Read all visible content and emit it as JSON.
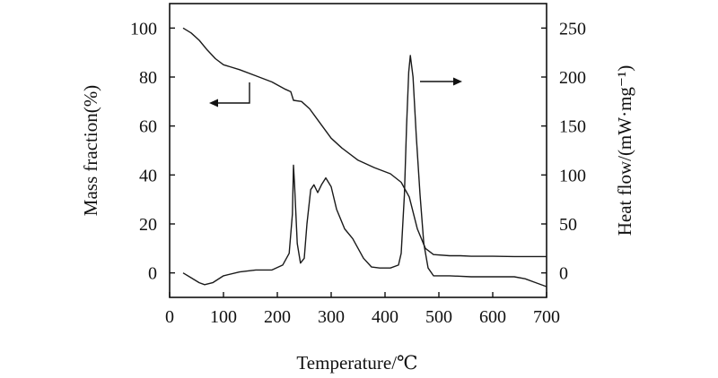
{
  "chart_data": {
    "type": "line",
    "xlabel": "Temperature/℃",
    "ylabel_left": "Mass fraction(%)",
    "ylabel_right": "Heat flow/(mW·mg⁻¹)",
    "xlim": [
      0,
      700
    ],
    "ylim_left": [
      -10,
      110
    ],
    "ylim_right": [
      -25,
      275
    ],
    "x_ticks": [
      "0",
      "100",
      "200",
      "300",
      "400",
      "500",
      "600",
      "700"
    ],
    "y_left_ticks": [
      "0",
      "20",
      "40",
      "60",
      "80",
      "100"
    ],
    "y_right_ticks": [
      "0",
      "50",
      "100",
      "150",
      "200",
      "250"
    ],
    "grid": false,
    "series": [
      {
        "axis": "left",
        "points": [
          [
            25,
            100
          ],
          [
            40,
            98
          ],
          [
            55,
            95
          ],
          [
            70,
            91
          ],
          [
            85,
            87.5
          ],
          [
            100,
            85
          ],
          [
            130,
            83
          ],
          [
            160,
            80.5
          ],
          [
            190,
            78
          ],
          [
            215,
            75
          ],
          [
            225,
            74
          ],
          [
            230,
            70.5
          ],
          [
            245,
            70
          ],
          [
            260,
            67
          ],
          [
            280,
            61
          ],
          [
            300,
            55
          ],
          [
            320,
            51
          ],
          [
            350,
            46
          ],
          [
            380,
            43
          ],
          [
            410,
            40.5
          ],
          [
            430,
            37
          ],
          [
            445,
            31
          ],
          [
            460,
            18
          ],
          [
            475,
            10
          ],
          [
            490,
            7.5
          ],
          [
            520,
            7
          ],
          [
            540,
            7
          ],
          [
            560,
            6.8
          ],
          [
            600,
            6.8
          ],
          [
            640,
            6.7
          ],
          [
            700,
            6.7
          ]
        ]
      },
      {
        "axis": "right",
        "points": [
          [
            25,
            0
          ],
          [
            40,
            -5
          ],
          [
            55,
            -10
          ],
          [
            65,
            -12
          ],
          [
            80,
            -10
          ],
          [
            100,
            -3
          ],
          [
            130,
            1
          ],
          [
            160,
            3
          ],
          [
            190,
            3
          ],
          [
            210,
            8
          ],
          [
            222,
            20
          ],
          [
            228,
            60
          ],
          [
            230,
            110
          ],
          [
            232,
            90
          ],
          [
            237,
            30
          ],
          [
            243,
            10
          ],
          [
            250,
            15
          ],
          [
            255,
            50
          ],
          [
            262,
            85
          ],
          [
            268,
            90
          ],
          [
            275,
            82
          ],
          [
            282,
            90
          ],
          [
            290,
            97
          ],
          [
            300,
            88
          ],
          [
            310,
            65
          ],
          [
            325,
            45
          ],
          [
            340,
            35
          ],
          [
            360,
            15
          ],
          [
            375,
            6
          ],
          [
            390,
            5
          ],
          [
            410,
            5
          ],
          [
            425,
            8
          ],
          [
            430,
            20
          ],
          [
            436,
            80
          ],
          [
            440,
            150
          ],
          [
            444,
            205
          ],
          [
            447,
            222
          ],
          [
            452,
            200
          ],
          [
            458,
            140
          ],
          [
            465,
            80
          ],
          [
            472,
            30
          ],
          [
            480,
            5
          ],
          [
            490,
            -3
          ],
          [
            520,
            -3
          ],
          [
            560,
            -4
          ],
          [
            600,
            -4
          ],
          [
            640,
            -4
          ],
          [
            660,
            -6
          ],
          [
            680,
            -10
          ],
          [
            700,
            -14
          ]
        ]
      }
    ],
    "annotations": [
      {
        "type": "arrow",
        "points_to": "left axis",
        "series": 0
      },
      {
        "type": "arrow",
        "points_to": "right axis",
        "series": 1
      }
    ]
  }
}
